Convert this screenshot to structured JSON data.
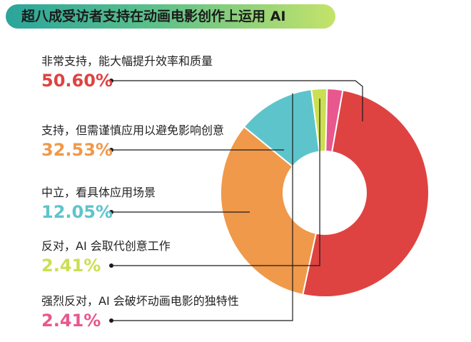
{
  "title": "超八成受访者支持在动画电影创作上运用 AI",
  "chart_data": {
    "type": "pie",
    "donut": true,
    "slices": [
      {
        "label": "非常支持，能大幅提升效率和质量",
        "value": 50.6,
        "display": "50.60%",
        "color": "#de4341"
      },
      {
        "label": "支持，但需谨慎应用以避免影响创意",
        "value": 32.53,
        "display": "32.53%",
        "color": "#f0994a"
      },
      {
        "label": "中立，看具体应用场景",
        "value": 12.05,
        "display": "12.05%",
        "color": "#5ec4cb"
      },
      {
        "label": "反对，AI 会取代创意工作",
        "value": 2.41,
        "display": "2.41%",
        "color": "#cbdf52"
      },
      {
        "label": "强烈反对，AI 会破坏动画电影的独特性",
        "value": 2.41,
        "display": "2.41%",
        "color": "#e8578d"
      }
    ]
  }
}
